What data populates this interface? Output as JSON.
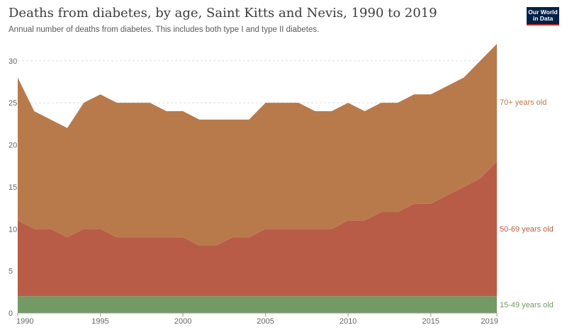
{
  "header": {
    "title": "Deaths from diabetes, by age, Saint Kitts and Nevis, 1990 to 2019",
    "subtitle": "Annual number of deaths from diabetes. This includes both type I and type II diabetes.",
    "logo_line1": "Our World",
    "logo_line2": "in Data"
  },
  "colors": {
    "age_70_plus": "#b87a4b",
    "age_50_69": "#b85c47",
    "age_15_49": "#729a64"
  },
  "chart_data": {
    "type": "area",
    "stacked": true,
    "title": "Deaths from diabetes, by age, Saint Kitts and Nevis, 1990 to 2019",
    "subtitle": "Annual number of deaths from diabetes. This includes both type I and type II diabetes.",
    "x": [
      1990,
      1991,
      1992,
      1993,
      1994,
      1995,
      1996,
      1997,
      1998,
      1999,
      2000,
      2001,
      2002,
      2003,
      2004,
      2005,
      2006,
      2007,
      2008,
      2009,
      2010,
      2011,
      2012,
      2013,
      2014,
      2015,
      2016,
      2017,
      2018,
      2019
    ],
    "series": [
      {
        "name": "15-49 years old",
        "values": [
          2,
          2,
          2,
          2,
          2,
          2,
          2,
          2,
          2,
          2,
          2,
          2,
          2,
          2,
          2,
          2,
          2,
          2,
          2,
          2,
          2,
          2,
          2,
          2,
          2,
          2,
          2,
          2,
          2,
          2
        ]
      },
      {
        "name": "50-69 years old",
        "values": [
          9,
          8,
          8,
          7,
          8,
          8,
          7,
          7,
          7,
          7,
          7,
          6,
          6,
          7,
          7,
          8,
          8,
          8,
          8,
          8,
          9,
          9,
          10,
          10,
          11,
          11,
          12,
          13,
          14,
          16
        ]
      },
      {
        "name": "70+ years old",
        "values": [
          17,
          14,
          13,
          13,
          15,
          16,
          16,
          16,
          16,
          15,
          15,
          15,
          15,
          14,
          14,
          15,
          15,
          15,
          14,
          14,
          14,
          13,
          13,
          13,
          13,
          13,
          13,
          13,
          14,
          14
        ]
      }
    ],
    "xticks": [
      1990,
      1995,
      2000,
      2005,
      2010,
      2015,
      2019
    ],
    "yticks": [
      0,
      5,
      10,
      15,
      20,
      25,
      30
    ],
    "xlim": [
      1990,
      2019
    ],
    "ylim": [
      0,
      32
    ],
    "grid": "horizontal dashed",
    "legend": "right, inline labels"
  }
}
